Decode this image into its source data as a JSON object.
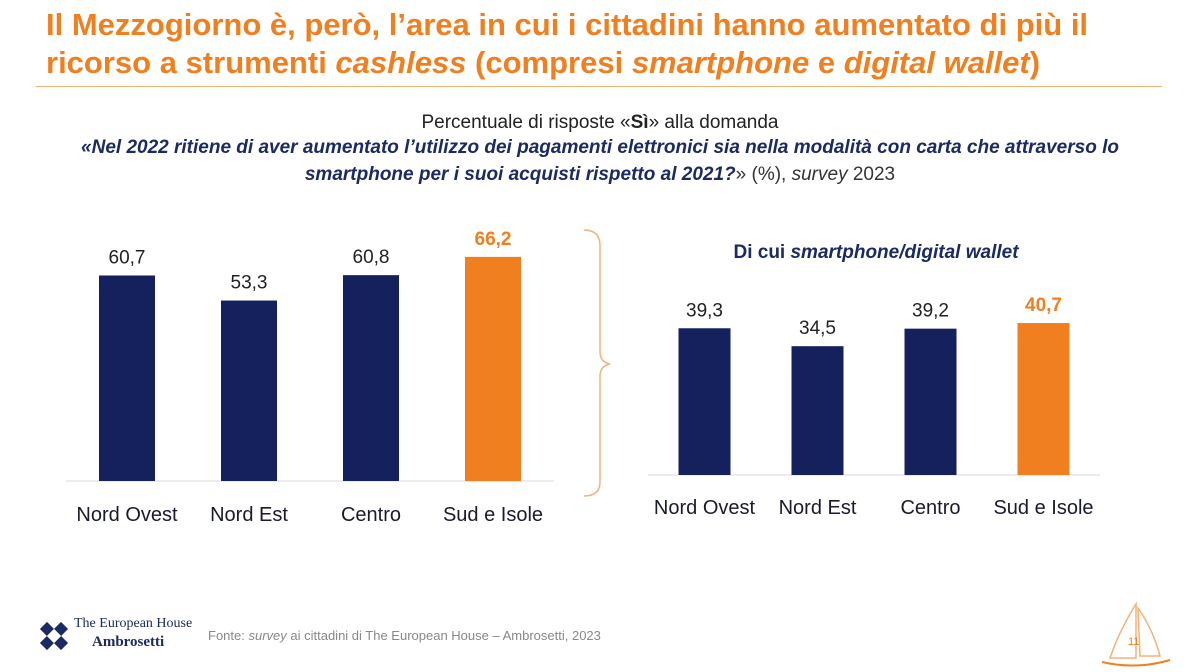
{
  "header": {
    "title_p1": "Il Mezzogiorno è, però, l’area in cui i cittadini hanno aumentato di più il ricorso a strumenti ",
    "title_it1": "cashless",
    "title_p2": " (compresi ",
    "title_it2": "smartphone",
    "title_p3": " e ",
    "title_it3": "digital wallet",
    "title_p4": ")"
  },
  "subtitle": {
    "pre": "Percentuale di risposte «",
    "bold": "Sì",
    "post": "» alla domanda"
  },
  "question": {
    "open": "«",
    "text": "Nel 2022 ritiene di aver aumentato l’utilizzo dei pagamenti elettronici sia nella modalità con carta che attraverso lo smartphone per i suoi acquisti rispetto al 2021?",
    "close": "» (%), ",
    "survey": "survey",
    "year": " 2023"
  },
  "colors": {
    "navy": "#14215c",
    "orange": "#f07f20",
    "bracket": "#f3b27a"
  },
  "chart_data": [
    {
      "type": "bar",
      "title": "",
      "categories": [
        "Nord Ovest",
        "Nord Est",
        "Centro",
        "Sud e Isole"
      ],
      "values": [
        60.7,
        53.3,
        60.8,
        66.2
      ],
      "labels": [
        "60,7",
        "53,3",
        "60,8",
        "66,2"
      ],
      "highlight_index": 3,
      "ylim": [
        0,
        70
      ],
      "xlabel": "",
      "ylabel": ""
    },
    {
      "type": "bar",
      "title_pre": "Di cui ",
      "title_it": "smartphone/digital wallet",
      "categories": [
        "Nord Ovest",
        "Nord Est",
        "Centro",
        "Sud e Isole"
      ],
      "values": [
        39.3,
        34.5,
        39.2,
        40.7
      ],
      "labels": [
        "39,3",
        "34,5",
        "39,2",
        "40,7"
      ],
      "highlight_index": 3,
      "ylim": [
        0,
        45
      ],
      "xlabel": "",
      "ylabel": ""
    }
  ],
  "footer": {
    "source_pre": "Fonte: ",
    "source_it": "survey",
    "source_post": " ai cittadini di The European House – Ambrosetti, 2023",
    "logo_line1": "The European House",
    "logo_line2": "Ambrosetti",
    "page": "11"
  }
}
